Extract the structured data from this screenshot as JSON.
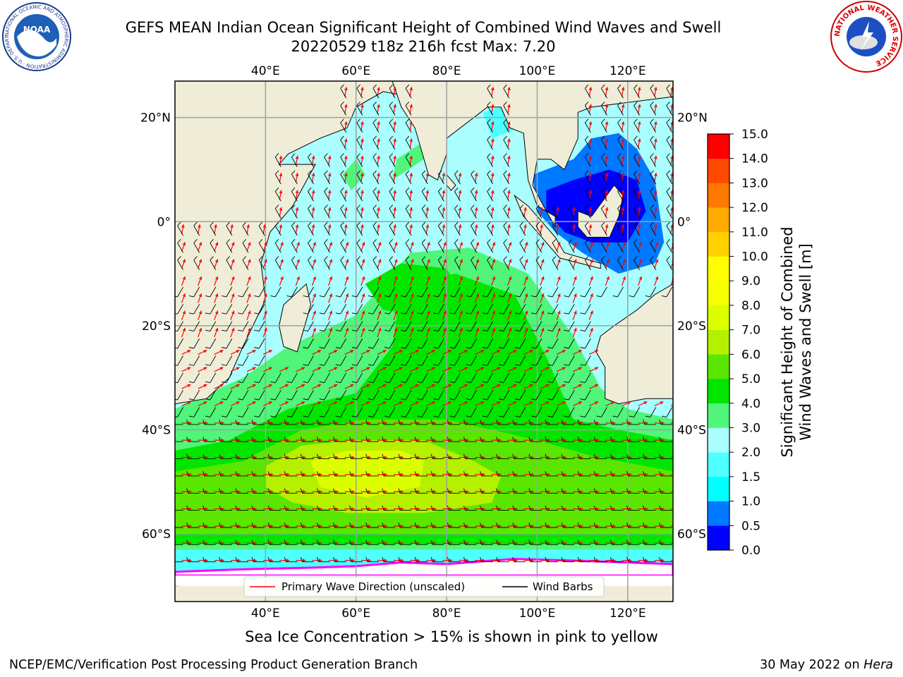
{
  "title_line1": "GEFS MEAN Indian Ocean Significant Height of Combined Wind Waves and Swell",
  "title_line2": "20220529 t18z 216h fcst   Max: 7.20",
  "subtitle": "Sea Ice Concentration > 15% is shown in pink to yellow",
  "footer_left": "NCEP/EMC/Verification Post Processing Product Generation Branch",
  "footer_right_date": "30 May 2022 on ",
  "footer_right_host": "Hera",
  "noaa_logo_text": "NOAA",
  "noaa_ring_text": "NATIONAL OCEANIC AND ATMOSPHERIC ADMINISTRATION · U.S. DEPARTMENT OF COMMERCE",
  "nws_ring_text": "NATIONAL WEATHER SERVICE",
  "map": {
    "lon_range": [
      20,
      130
    ],
    "lat_range": [
      -73,
      27
    ],
    "lon_ticks": [
      {
        "value": 40,
        "label": "40°E"
      },
      {
        "value": 60,
        "label": "60°E"
      },
      {
        "value": 80,
        "label": "80°E"
      },
      {
        "value": 100,
        "label": "100°E"
      },
      {
        "value": 120,
        "label": "120°E"
      }
    ],
    "lat_ticks": [
      {
        "value": 20,
        "label": "20°N"
      },
      {
        "value": 0,
        "label": "0°"
      },
      {
        "value": -20,
        "label": "20°S"
      },
      {
        "value": -40,
        "label": "40°S"
      },
      {
        "value": -60,
        "label": "60°S"
      }
    ],
    "land_color": "#efedd8",
    "ocean_base_color": "#aafefe",
    "ice_color": "#ffffff"
  },
  "legend": {
    "wave_label": "Primary Wave Direction (unscaled)",
    "barb_label": "Wind Barbs",
    "wave_color": "#ff0000",
    "barb_color": "#000000"
  },
  "colorbar": {
    "label_line1": "Significant Height of Combined",
    "label_line2": "Wind Waves and Swell [m]",
    "levels": [
      0.0,
      0.5,
      1.0,
      1.5,
      2.0,
      3.0,
      4.0,
      5.0,
      6.0,
      7.0,
      8.0,
      9.0,
      10.0,
      11.0,
      12.0,
      13.0,
      14.0,
      15.0
    ],
    "tick_labels": [
      "0.0",
      "0.5",
      "1.0",
      "1.5",
      "2.0",
      "3.0",
      "4.0",
      "5.0",
      "6.0",
      "7.0",
      "8.0",
      "9.0",
      "10.0",
      "11.0",
      "12.0",
      "13.0",
      "14.0",
      "15.0"
    ],
    "colors": [
      "#0000ff",
      "#0078ff",
      "#00ffff",
      "#50ffff",
      "#aafefe",
      "#50f57a",
      "#00e600",
      "#5ae600",
      "#b4f000",
      "#dcff00",
      "#f5ff00",
      "#ffff00",
      "#ffd200",
      "#ffaa00",
      "#ff7800",
      "#ff4800",
      "#ff0000"
    ]
  }
}
